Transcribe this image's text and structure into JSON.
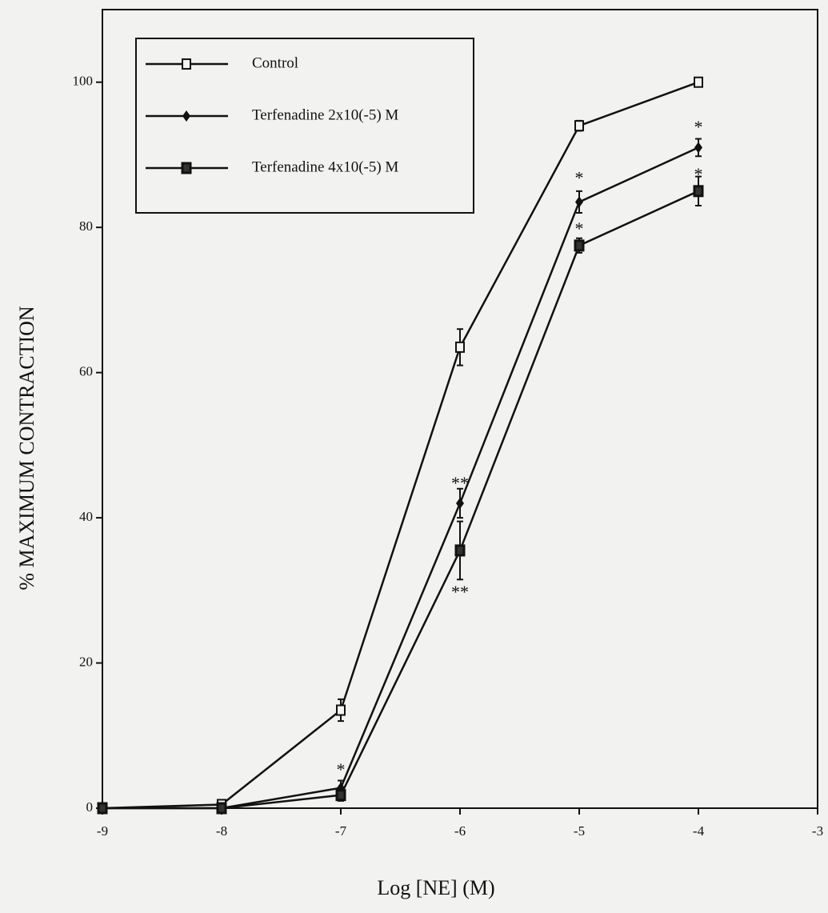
{
  "chart_data": {
    "type": "line",
    "x_label": "Log [NE] (M)",
    "y_label": "% MAXIMUM CONTRACTION",
    "x": [
      -9,
      -8,
      -7,
      -6,
      -5,
      -4
    ],
    "series": [
      {
        "name": "Control",
        "color": "#111111",
        "marker": "open-square",
        "values": [
          0,
          0.5,
          13.5,
          63.5,
          94,
          100
        ],
        "errors": [
          0.3,
          0.5,
          1.5,
          2.5,
          0.7,
          0.6
        ]
      },
      {
        "name": "Terfenadine 2x10(-5) M",
        "color": "#111111",
        "marker": "diamond",
        "values": [
          0,
          0,
          2.8,
          42,
          83.5,
          91
        ],
        "errors": [
          0.2,
          0.3,
          1.0,
          2.0,
          1.5,
          1.2
        ]
      },
      {
        "name": "Terfenadine 4x10(-5) M",
        "color": "#111111",
        "marker": "filled-square",
        "values": [
          0,
          0,
          1.8,
          35.5,
          77.5,
          85
        ],
        "errors": [
          0.2,
          0.3,
          0.8,
          4.0,
          1.0,
          2.0
        ]
      }
    ],
    "annotations": [
      {
        "text": "*",
        "x": -7,
        "y": 5.5
      },
      {
        "text": "**",
        "x": -6,
        "y": 45
      },
      {
        "text": "**",
        "x": -6,
        "y": 30
      },
      {
        "text": "*",
        "x": -5,
        "y": 87
      },
      {
        "text": "*",
        "x": -5,
        "y": 80
      },
      {
        "text": "*",
        "x": -4,
        "y": 94
      },
      {
        "text": "*",
        "x": -4,
        "y": 87.5
      }
    ],
    "xlim": [
      -9,
      -3
    ],
    "xticks": [
      -9,
      -8,
      -7,
      -6,
      -5,
      -4,
      -3
    ],
    "ylim": [
      0,
      110
    ],
    "yticks": [
      0,
      20,
      40,
      60,
      80,
      100
    ],
    "legend": "upper left",
    "grid": false
  }
}
